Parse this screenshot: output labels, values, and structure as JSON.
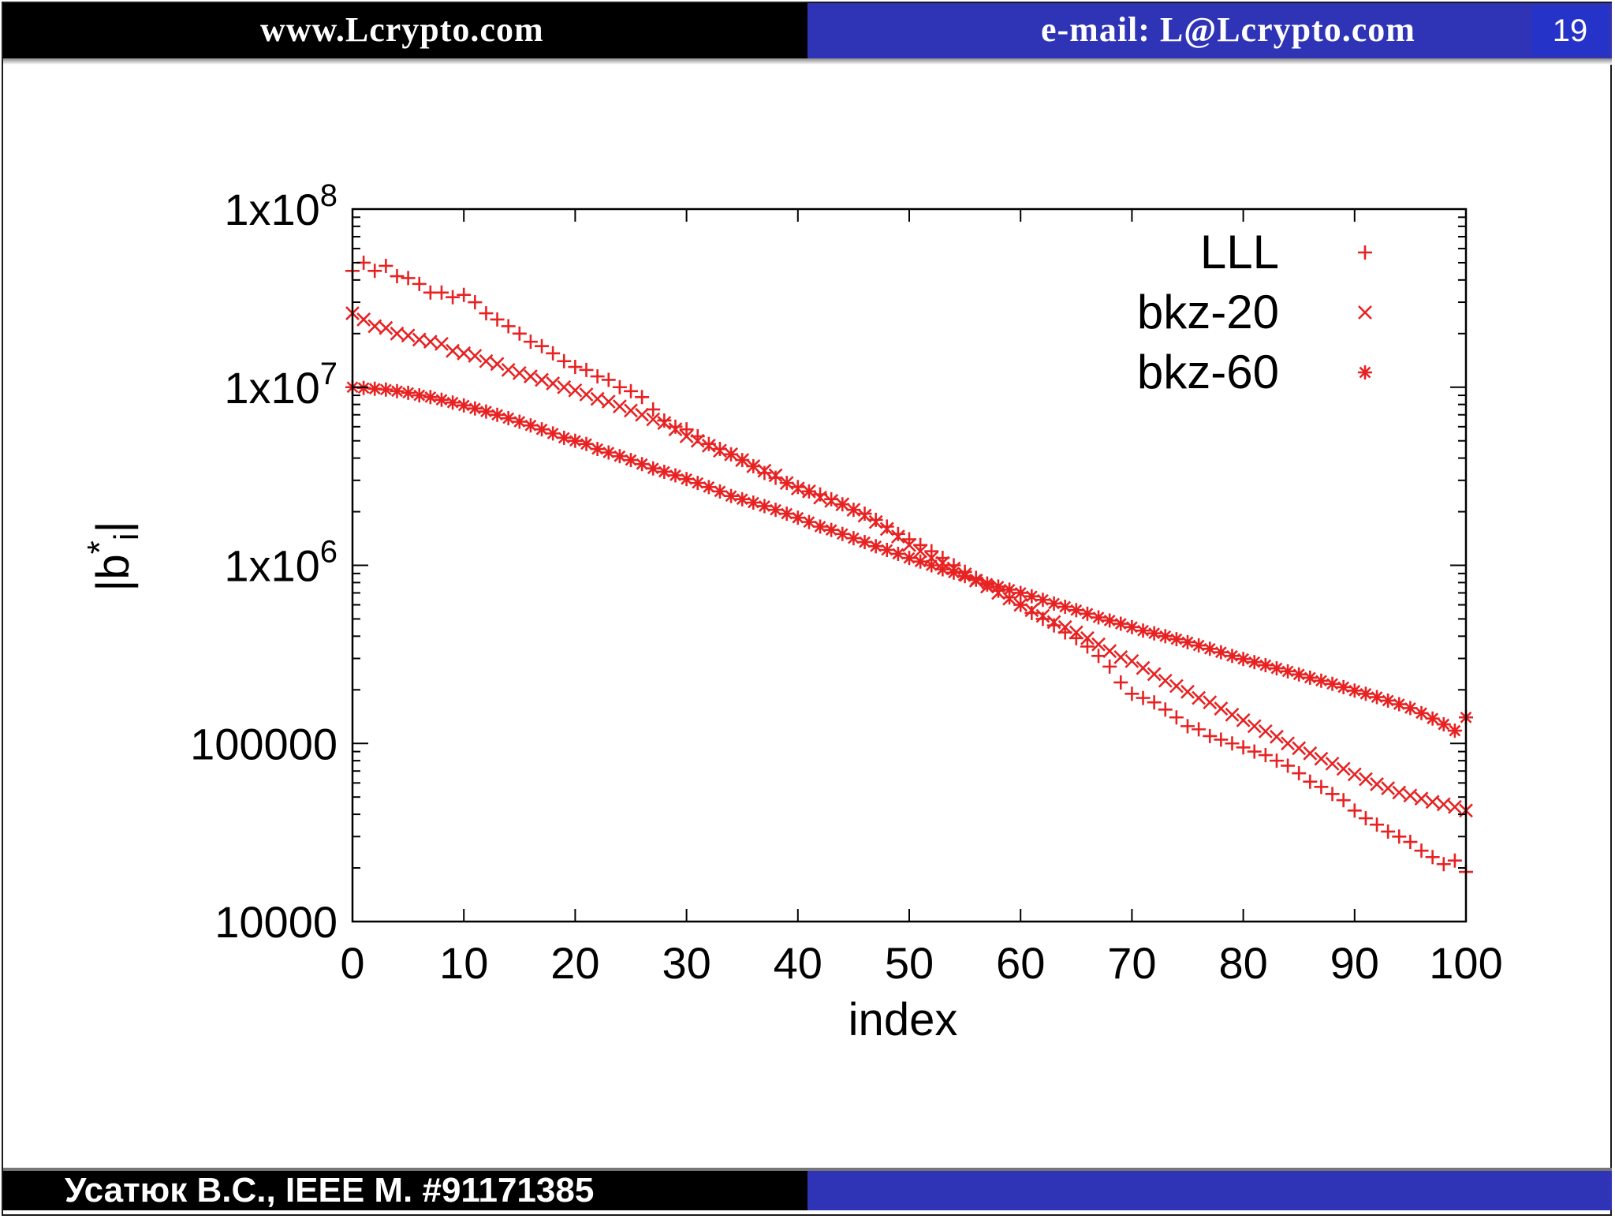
{
  "header": {
    "website": "www.Lcrypto.com",
    "email": "e-mail: L@Lcrypto.com",
    "page_number": "19"
  },
  "footer": {
    "author": "Усатюк В.С., IEEE M. #91171385"
  },
  "colors": {
    "header_black": "#000000",
    "header_blue": "#2f33b5",
    "page_box": "#2633c8",
    "series": "#e82222"
  },
  "chart_data": {
    "type": "scatter",
    "title": "",
    "xlabel": "index",
    "ylabel": "|b*i|",
    "ylabel_main": "|b",
    "ylabel_sup": "*",
    "ylabel_sub": "i",
    "ylabel_end": "|",
    "yscale": "log",
    "xlim": [
      0,
      100
    ],
    "ylim": [
      10000,
      100000000
    ],
    "x_ticks": [
      "0",
      "10",
      "20",
      "30",
      "40",
      "50",
      "60",
      "70",
      "80",
      "90",
      "100"
    ],
    "y_ticks": [
      {
        "value": 100000000,
        "label": "1x10",
        "sup": "8"
      },
      {
        "value": 10000000,
        "label": "1x10",
        "sup": "7"
      },
      {
        "value": 1000000,
        "label": "1x10",
        "sup": "6"
      },
      {
        "value": 100000,
        "label": "100000",
        "sup": ""
      },
      {
        "value": 10000,
        "label": "10000",
        "sup": ""
      }
    ],
    "legend_position": "top-right",
    "series": [
      {
        "name": "LLL",
        "marker": "plus",
        "values": [
          45000000,
          50000000,
          45000000,
          48000000,
          42000000,
          41000000,
          38000000,
          34000000,
          34000000,
          32000000,
          33000000,
          30000000,
          26000000,
          24000000,
          22000000,
          20000000,
          18000000,
          17000000,
          15500000,
          14000000,
          13000000,
          12500000,
          11500000,
          11000000,
          10000000,
          9500000,
          8800000,
          7500000,
          6500000,
          6000000,
          5800000,
          5300000,
          4800000,
          4500000,
          4200000,
          3900000,
          3600000,
          3300000,
          3100000,
          2900000,
          2750000,
          2600000,
          2500000,
          2350000,
          2200000,
          2050000,
          1950000,
          1800000,
          1650000,
          1500000,
          1400000,
          1300000,
          1200000,
          1100000,
          1000000,
          920000,
          850000,
          780000,
          720000,
          660000,
          600000,
          540000,
          500000,
          460000,
          420000,
          390000,
          350000,
          310000,
          270000,
          220000,
          190000,
          180000,
          170000,
          155000,
          140000,
          125000,
          120000,
          110000,
          105000,
          100000,
          95000,
          90000,
          86000,
          80000,
          75000,
          68000,
          61000,
          57000,
          52000,
          48000,
          42000,
          38000,
          35000,
          32000,
          30000,
          28000,
          25000,
          23000,
          21000,
          22000,
          19000
        ]
      },
      {
        "name": "bkz-20",
        "marker": "cross",
        "values": [
          26000000,
          24000000,
          22000000,
          21500000,
          20000000,
          19500000,
          18500000,
          18000000,
          17500000,
          16000000,
          15500000,
          15000000,
          14000000,
          13500000,
          12500000,
          12000000,
          11500000,
          11000000,
          10500000,
          10000000,
          9600000,
          9100000,
          8600000,
          8300000,
          7800000,
          7400000,
          7000000,
          6600000,
          6300000,
          5800000,
          5300000,
          5000000,
          4700000,
          4400000,
          4200000,
          3900000,
          3600000,
          3400000,
          3200000,
          2900000,
          2700000,
          2600000,
          2400000,
          2300000,
          2200000,
          2050000,
          1900000,
          1750000,
          1600000,
          1450000,
          1300000,
          1200000,
          1100000,
          1030000,
          960000,
          890000,
          820000,
          760000,
          700000,
          650000,
          600000,
          560000,
          520000,
          480000,
          450000,
          420000,
          390000,
          360000,
          330000,
          305000,
          290000,
          265000,
          245000,
          225000,
          210000,
          195000,
          180000,
          170000,
          157000,
          145000,
          135000,
          125000,
          117000,
          109000,
          100000,
          94000,
          88000,
          82000,
          77000,
          72000,
          67000,
          63000,
          59000,
          56000,
          53000,
          51000,
          49000,
          47000,
          45500,
          44000,
          42000
        ]
      },
      {
        "name": "bkz-60",
        "marker": "star",
        "values": [
          10000000,
          9900000,
          9800000,
          9700000,
          9500000,
          9300000,
          9000000,
          8800000,
          8500000,
          8200000,
          7900000,
          7600000,
          7300000,
          7000000,
          6700000,
          6400000,
          6100000,
          5800000,
          5500000,
          5200000,
          5000000,
          4800000,
          4500000,
          4300000,
          4100000,
          3900000,
          3700000,
          3500000,
          3350000,
          3200000,
          3050000,
          2900000,
          2750000,
          2600000,
          2450000,
          2350000,
          2250000,
          2150000,
          2050000,
          1950000,
          1850000,
          1750000,
          1650000,
          1580000,
          1500000,
          1420000,
          1350000,
          1280000,
          1220000,
          1160000,
          1100000,
          1050000,
          1000000,
          950000,
          910000,
          870000,
          830000,
          790000,
          760000,
          730000,
          700000,
          670000,
          640000,
          610000,
          585000,
          560000,
          535000,
          510000,
          490000,
          470000,
          450000,
          430000,
          415000,
          400000,
          385000,
          370000,
          355000,
          340000,
          325000,
          310000,
          298000,
          286000,
          275000,
          264000,
          254000,
          244000,
          234000,
          225000,
          216000,
          207000,
          198000,
          190000,
          182000,
          174000,
          166000,
          158000,
          148000,
          138000,
          128000,
          118000,
          140000
        ]
      }
    ]
  }
}
